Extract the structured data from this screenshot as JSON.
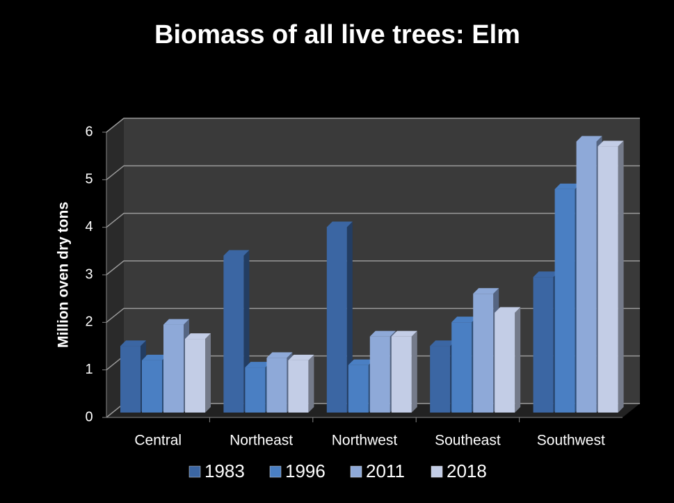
{
  "chart_data": {
    "type": "bar",
    "title": "Biomass of all live trees:  Elm",
    "y_label": "Million oven dry tons",
    "categories": [
      "Central",
      "Northeast",
      "Northwest",
      "Southeast",
      "Southwest"
    ],
    "series": [
      {
        "name": "1983",
        "color": "#3b66a3",
        "values": [
          1.4,
          3.3,
          3.9,
          1.4,
          2.85
        ]
      },
      {
        "name": "1996",
        "color": "#4a7fc3",
        "values": [
          1.1,
          0.95,
          1.0,
          1.9,
          4.7
        ]
      },
      {
        "name": "2011",
        "color": "#8ea9d8",
        "values": [
          1.85,
          1.15,
          1.6,
          2.5,
          5.7
        ]
      },
      {
        "name": "2018",
        "color": "#c3cde6",
        "values": [
          1.55,
          1.1,
          1.6,
          2.1,
          5.6
        ]
      }
    ],
    "ylim": [
      0,
      6
    ],
    "yticks": [
      0,
      1,
      2,
      3,
      4,
      5,
      6
    ],
    "grid": true,
    "legend": "bottom"
  }
}
